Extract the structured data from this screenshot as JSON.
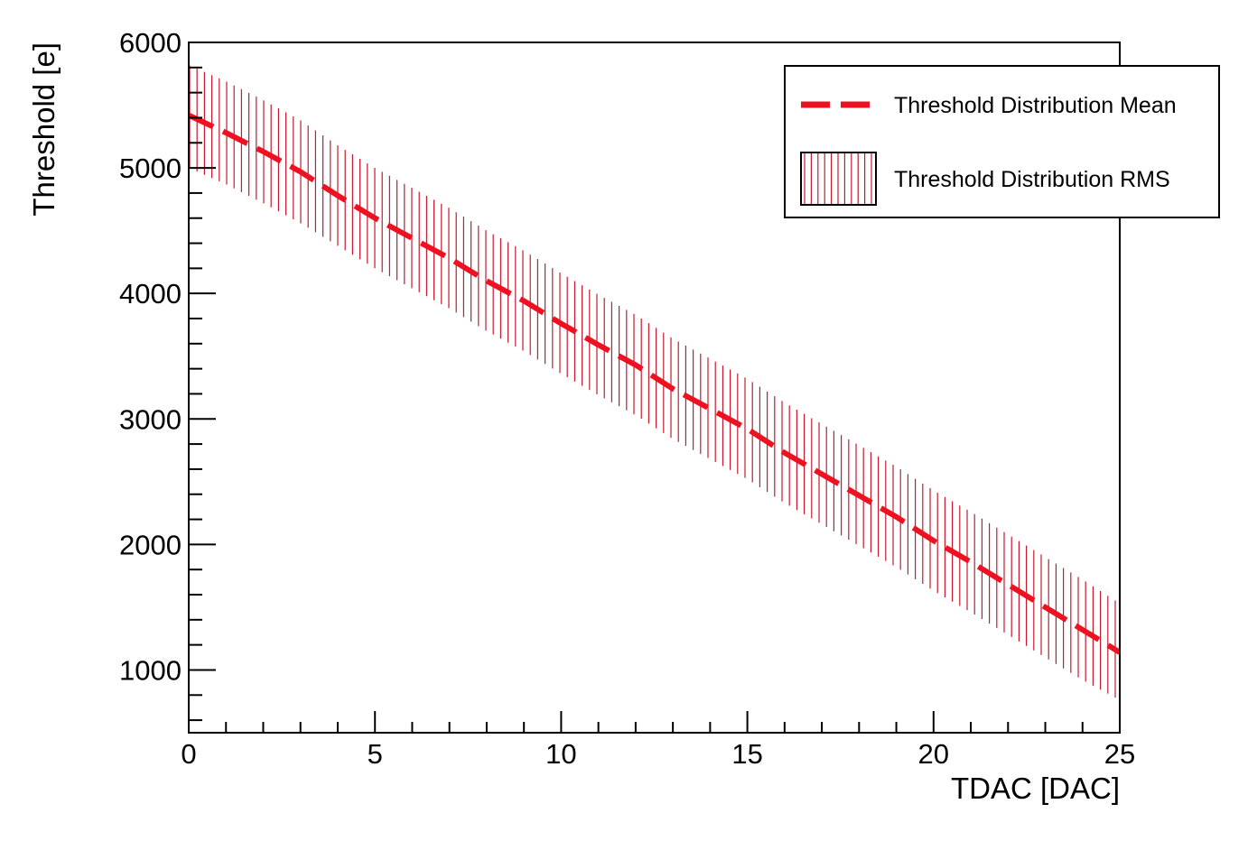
{
  "chart_data": {
    "type": "area",
    "xlabel": "TDAC [DAC]",
    "ylabel": "Threshold [e]",
    "xlim": [
      0,
      25
    ],
    "ylim": [
      500,
      6000
    ],
    "x_ticks": [
      "0",
      "5",
      "10",
      "15",
      "20",
      "25"
    ],
    "y_ticks": [
      "1000",
      "2000",
      "3000",
      "4000",
      "5000",
      "6000"
    ],
    "grid": false,
    "legend_position": "top-right",
    "colors": {
      "series": "#ee1122",
      "hatch": "#c41b2c"
    },
    "x": [
      0,
      1,
      2,
      3,
      4,
      5,
      6,
      7,
      8,
      9,
      10,
      11,
      12,
      13,
      14,
      15,
      16,
      17,
      18,
      19,
      20,
      21,
      22,
      23,
      24,
      25
    ],
    "series": [
      {
        "name": "Threshold Distribution Mean",
        "style": "dashed",
        "values": [
          5420,
          5280,
          5130,
          4970,
          4780,
          4600,
          4440,
          4280,
          4100,
          3940,
          3760,
          3590,
          3430,
          3240,
          3080,
          2920,
          2730,
          2560,
          2390,
          2220,
          2030,
          1860,
          1680,
          1500,
          1320,
          1140
        ]
      },
      {
        "name": "Threshold Distribution RMS",
        "style": "hatched-band",
        "lower": [
          5000,
          4870,
          4720,
          4560,
          4380,
          4200,
          4040,
          3880,
          3700,
          3540,
          3360,
          3190,
          3030,
          2840,
          2680,
          2520,
          2330,
          2160,
          1990,
          1820,
          1630,
          1460,
          1280,
          1100,
          920,
          760
        ],
        "upper": [
          5820,
          5690,
          5540,
          5380,
          5180,
          5000,
          4840,
          4680,
          4500,
          4340,
          4160,
          3990,
          3830,
          3640,
          3480,
          3320,
          3130,
          2960,
          2790,
          2620,
          2430,
          2260,
          2080,
          1900,
          1720,
          1530
        ]
      }
    ]
  }
}
